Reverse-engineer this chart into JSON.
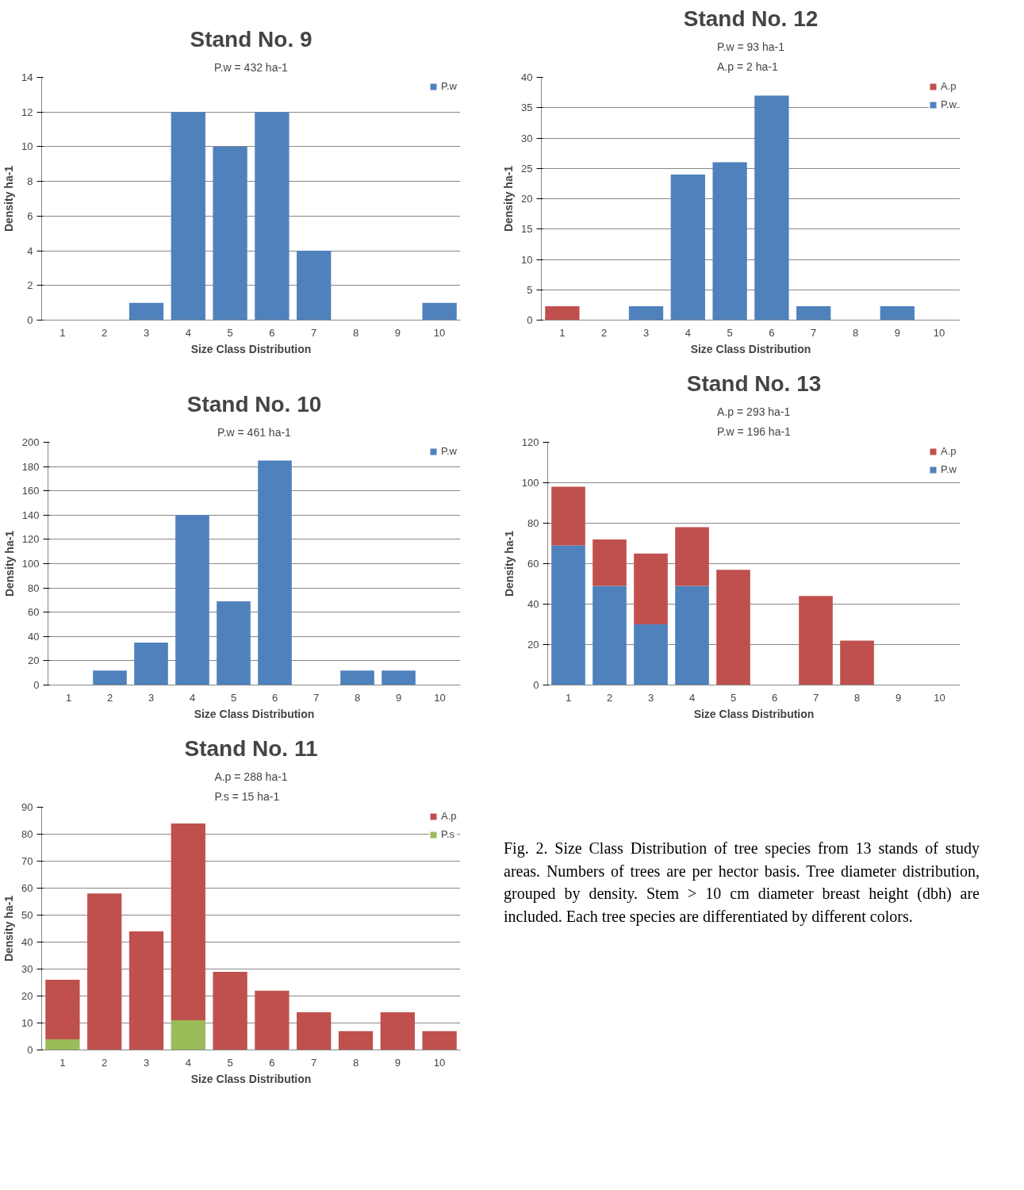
{
  "chart_data": [
    {
      "type": "bar",
      "title": "Stand No. 9",
      "subtitle": "P.w = 432 ha-1",
      "xlabel": "Size Class Distribution",
      "ylabel": "Density ha-1",
      "categories": [
        "1",
        "2",
        "3",
        "4",
        "5",
        "6",
        "7",
        "8",
        "9",
        "10"
      ],
      "stacked": true,
      "series": [
        {
          "name": "P.w",
          "color": "#4f81bd",
          "values": [
            0,
            0,
            1,
            12,
            10,
            12,
            4,
            0,
            0,
            1
          ]
        }
      ],
      "ylim": [
        0,
        14
      ],
      "yticks": [
        0,
        2,
        4,
        6,
        8,
        10,
        12,
        14
      ],
      "grid": "y",
      "legend": "top right"
    },
    {
      "type": "bar",
      "title": "Stand No. 12",
      "subtitle": "P.w = 93 ha-1\nA.p = 2 ha-1",
      "xlabel": "Size Class Distribution",
      "ylabel": "Density ha-1",
      "categories": [
        "1",
        "2",
        "3",
        "4",
        "5",
        "6",
        "7",
        "8",
        "9",
        "10"
      ],
      "stacked": true,
      "series": [
        {
          "name": "P.w",
          "color": "#4f81bd",
          "values": [
            0,
            0,
            2.3,
            24,
            26,
            37,
            2.3,
            0,
            2.3,
            0
          ]
        },
        {
          "name": "A.p",
          "color": "#c0504d",
          "values": [
            2.3,
            0,
            0,
            0,
            0,
            0,
            0,
            0,
            0,
            0
          ]
        }
      ],
      "ylim": [
        0,
        40
      ],
      "yticks": [
        0,
        5,
        10,
        15,
        20,
        25,
        30,
        35,
        40
      ],
      "grid": "y",
      "legend": "top right"
    },
    {
      "type": "bar",
      "title": "Stand No. 10",
      "subtitle": "P.w = 461 ha-1",
      "xlabel": "Size Class Distribution",
      "ylabel": "Density ha-1",
      "categories": [
        "1",
        "2",
        "3",
        "4",
        "5",
        "6",
        "7",
        "8",
        "9",
        "10"
      ],
      "stacked": true,
      "series": [
        {
          "name": "P.w",
          "color": "#4f81bd",
          "values": [
            0,
            12,
            35,
            140,
            69,
            185,
            0,
            12,
            12,
            0
          ]
        }
      ],
      "ylim": [
        0,
        200
      ],
      "yticks": [
        0,
        20,
        40,
        60,
        80,
        100,
        120,
        140,
        160,
        180,
        200
      ],
      "grid": "y",
      "legend": "top right"
    },
    {
      "type": "bar",
      "title": "Stand No. 13",
      "subtitle": "A.p = 293 ha-1\nP.w = 196 ha-1",
      "xlabel": "Size Class Distribution",
      "ylabel": "Density ha-1",
      "categories": [
        "1",
        "2",
        "3",
        "4",
        "5",
        "6",
        "7",
        "8",
        "9",
        "10"
      ],
      "stacked": true,
      "series": [
        {
          "name": "P.w",
          "color": "#4f81bd",
          "values": [
            69,
            49,
            30,
            49,
            0,
            0,
            0,
            0,
            0,
            0
          ]
        },
        {
          "name": "A.p",
          "color": "#c0504d",
          "values": [
            29,
            23,
            35,
            29,
            57,
            0,
            44,
            22,
            0,
            0
          ]
        }
      ],
      "ylim": [
        0,
        120
      ],
      "yticks": [
        0,
        20,
        40,
        60,
        80,
        100,
        120
      ],
      "grid": "y",
      "legend": "top right"
    },
    {
      "type": "bar",
      "title": "Stand No. 11",
      "subtitle": "A.p = 288 ha-1\nP.s = 15 ha-1",
      "xlabel": "Size Class Distribution",
      "ylabel": "Density ha-1",
      "categories": [
        "1",
        "2",
        "3",
        "4",
        "5",
        "6",
        "7",
        "8",
        "9",
        "10"
      ],
      "stacked": true,
      "series": [
        {
          "name": "P.s",
          "color": "#9bbb59",
          "values": [
            4,
            0,
            0,
            11,
            0,
            0,
            0,
            0,
            0,
            0
          ]
        },
        {
          "name": "A.p",
          "color": "#c0504d",
          "values": [
            22,
            58,
            44,
            73,
            29,
            22,
            14,
            7,
            14,
            7
          ]
        }
      ],
      "ylim": [
        0,
        90
      ],
      "yticks": [
        0,
        10,
        20,
        30,
        40,
        50,
        60,
        70,
        80,
        90
      ],
      "grid": "y",
      "legend": "top right"
    },
    {
      "type": "other",
      "annotations": [
        "Fig. 2. Size Class Distribution of tree species from 13 stands of study areas. Numbers of trees are per hector basis. Tree diameter distribution, grouped by density. Stem > 10 cm diameter breast height (dbh) are included. Each tree species are differentiated by different colors."
      ]
    }
  ]
}
